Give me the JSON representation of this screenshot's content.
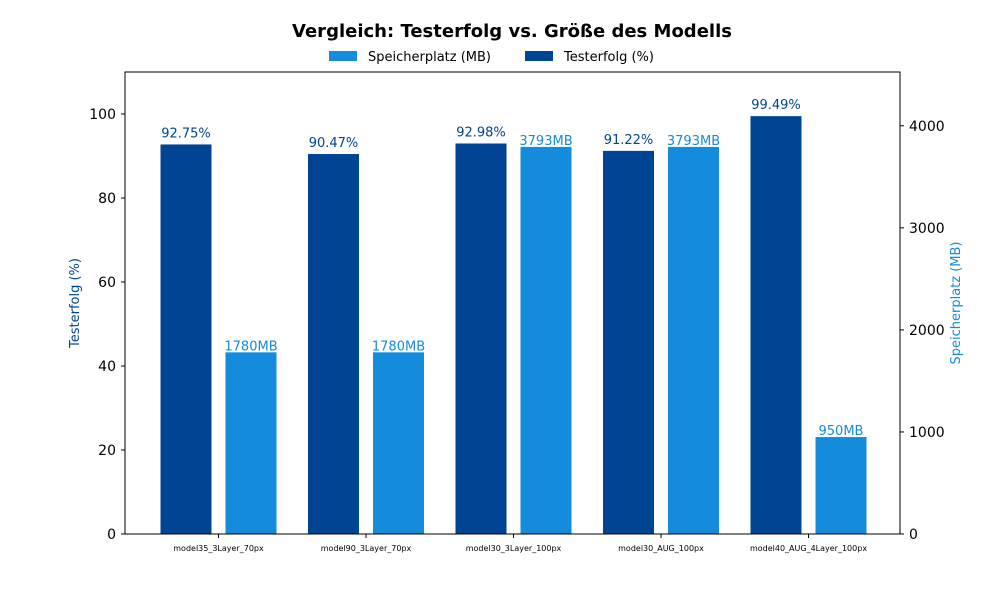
{
  "chart_data": {
    "type": "bar",
    "title": "Vergleich: Testerfolg vs. Größe des Modells",
    "categories": [
      "model35_3Layer_70px",
      "model90_3Layer_70px",
      "model30_3Layer_100px",
      "model30_AUG_100px",
      "model40_AUG_4Layer_100px"
    ],
    "series": [
      {
        "name": "Testerfolg (%)",
        "axis": "left",
        "color": "#004494",
        "values": [
          92.75,
          90.47,
          92.98,
          91.22,
          99.49
        ],
        "labels": [
          "92.75%",
          "90.47%",
          "92.98%",
          "91.22%",
          "99.49%"
        ]
      },
      {
        "name": "Speicherplatz (MB)",
        "axis": "right",
        "color": "#158bdb",
        "values": [
          1780,
          1780,
          3793,
          3793,
          950
        ],
        "labels": [
          "1780MB",
          "1780MB",
          "3793MB",
          "3793MB",
          "950MB"
        ]
      }
    ],
    "ylabel_left": "Testerfolg (%)",
    "ylabel_right": "Speicherplatz (MB)",
    "ylim_left": [
      0,
      110
    ],
    "ylim_right": [
      0,
      4527
    ],
    "yticks_left": [
      "0",
      "20",
      "40",
      "60",
      "80",
      "100"
    ],
    "yticks_right": [
      "0",
      "1000",
      "2000",
      "3000",
      "4000"
    ],
    "legend": {
      "placement": "top-center",
      "entries": [
        "Speicherplatz (MB)",
        "Testerfolg (%)"
      ]
    },
    "grid": false
  }
}
